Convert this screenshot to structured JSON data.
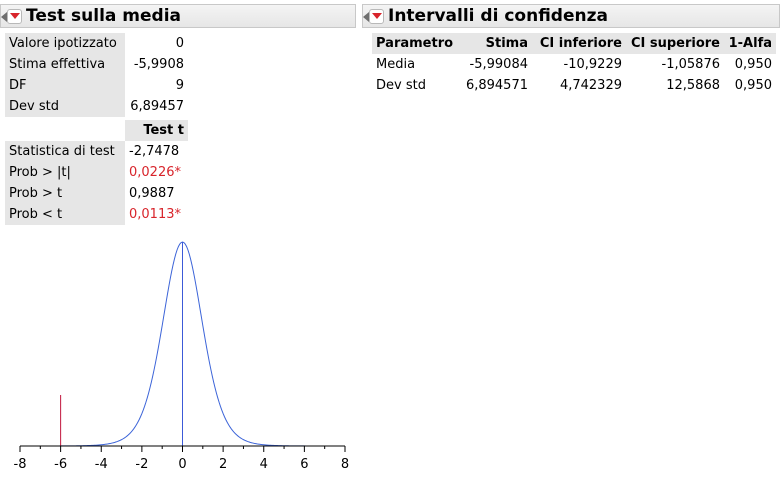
{
  "left_panel": {
    "title": "Test sulla media",
    "summary": [
      {
        "label": "Valore ipotizzato",
        "value": "0"
      },
      {
        "label": "Stima effettiva",
        "value": "-5,9908"
      },
      {
        "label": "DF",
        "value": "9"
      },
      {
        "label": "Dev std",
        "value": "6,89457"
      }
    ],
    "test_header": "Test t",
    "test_rows": [
      {
        "label": "Statistica di test",
        "value": "-2,7478",
        "highlight": false
      },
      {
        "label": "Prob > |t|",
        "value": "0,0226*",
        "highlight": true
      },
      {
        "label": "Prob > t",
        "value": "0,9887",
        "highlight": false
      },
      {
        "label": "Prob < t",
        "value": "0,0113*",
        "highlight": true
      }
    ]
  },
  "right_panel": {
    "title": "Intervalli di confidenza",
    "columns": [
      "Parametro",
      "Stima",
      "CI inferiore",
      "CI superiore",
      "1-Alfa"
    ],
    "rows": [
      [
        "Media",
        "-5,99084",
        "-10,9229",
        "-1,05876",
        "0,950"
      ],
      [
        "Dev std",
        "6,894571",
        "4,742329",
        "12,5868",
        "0,950"
      ]
    ]
  },
  "chart_data": {
    "type": "area",
    "x_ticks": [
      "-8",
      "-6",
      "-4",
      "-2",
      "0",
      "2",
      "4",
      "6",
      "8"
    ],
    "xlim": [
      -8,
      8
    ],
    "df": 9,
    "observed_t": -6,
    "center": 0,
    "shaded_left_max": -6,
    "shaded_right_min": 6,
    "colors": {
      "curve": "#3c64d8",
      "left_tail": "#2b58e0",
      "right_tail": "#1ea0d8",
      "observed_line": "#c0143c",
      "center_line": "#3c5ad8"
    }
  }
}
